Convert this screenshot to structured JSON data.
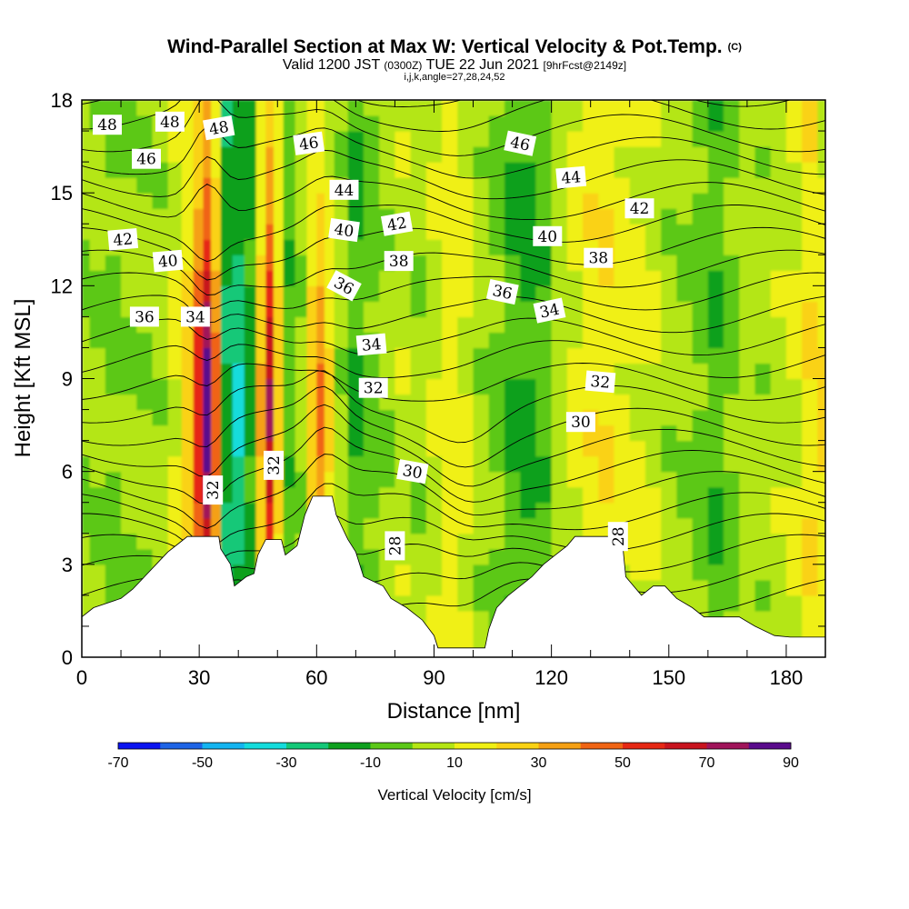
{
  "chart_data": {
    "type": "heatmap",
    "title": "Wind-Parallel Section at Max W: Vertical Velocity & Pot.Temp.",
    "copyright_mark": "(C)",
    "subtitle_parts": [
      "Valid 1200 JST",
      "(0300Z)",
      "TUE 22 Jun 2021",
      "[9hrFcst@2149z]"
    ],
    "subsubtitle": "i,j,k,angle=27,28,24,52",
    "xlabel": "Distance [nm]",
    "ylabel": "Height [Kft MSL]",
    "xlim": [
      0,
      190
    ],
    "ylim": [
      0,
      18
    ],
    "x_ticks": [
      0,
      30,
      60,
      90,
      120,
      150,
      180
    ],
    "y_ticks": [
      0,
      3,
      6,
      9,
      12,
      15,
      18
    ],
    "colorbar": {
      "title": "Vertical Velocity [cm/s]",
      "bounds": [
        -70,
        -60,
        -50,
        -40,
        -30,
        -20,
        -10,
        0,
        10,
        20,
        30,
        40,
        50,
        60,
        70,
        80,
        90
      ],
      "tick_labels": [
        "-70",
        "-50",
        "-30",
        "-10",
        "10",
        "30",
        "50",
        "70",
        "90"
      ],
      "colors": [
        "#0a14f0",
        "#1e64e6",
        "#14b4f0",
        "#14dcdc",
        "#14c878",
        "#0ea01e",
        "#5cc818",
        "#b4e614",
        "#f0f014",
        "#fad214",
        "#f5a014",
        "#f06414",
        "#e62814",
        "#c8141e",
        "#a0145a",
        "#5a0a8c"
      ]
    },
    "vertical_velocity_columns": [
      {
        "x": 0,
        "w": 2
      },
      {
        "x": 4,
        "w": 2
      },
      {
        "x": 8,
        "w": -2
      },
      {
        "x": 12,
        "w": 2
      },
      {
        "x": 16,
        "w": 2
      },
      {
        "x": 20,
        "w": 4
      },
      {
        "x": 24,
        "w": 12
      },
      {
        "x": 27,
        "w": 30
      },
      {
        "x": 30,
        "w": 60
      },
      {
        "x": 32,
        "w": 88
      },
      {
        "x": 34,
        "w": 45
      },
      {
        "x": 37,
        "w": -18
      },
      {
        "x": 40,
        "w": -32
      },
      {
        "x": 43,
        "w": -14
      },
      {
        "x": 46,
        "w": 32
      },
      {
        "x": 48,
        "w": 72
      },
      {
        "x": 50,
        "w": 28
      },
      {
        "x": 53,
        "w": -6
      },
      {
        "x": 56,
        "w": 3
      },
      {
        "x": 59,
        "w": 28
      },
      {
        "x": 61,
        "w": 42
      },
      {
        "x": 63,
        "w": 22
      },
      {
        "x": 66,
        "w": 4
      },
      {
        "x": 70,
        "w": -10
      },
      {
        "x": 74,
        "w": -4
      },
      {
        "x": 78,
        "w": 3
      },
      {
        "x": 82,
        "w": 6
      },
      {
        "x": 86,
        "w": 3
      },
      {
        "x": 90,
        "w": 8
      },
      {
        "x": 94,
        "w": 15
      },
      {
        "x": 98,
        "w": 12
      },
      {
        "x": 102,
        "w": 4
      },
      {
        "x": 106,
        "w": -2
      },
      {
        "x": 110,
        "w": -8
      },
      {
        "x": 114,
        "w": -12
      },
      {
        "x": 118,
        "w": -6
      },
      {
        "x": 122,
        "w": 5
      },
      {
        "x": 126,
        "w": 12
      },
      {
        "x": 130,
        "w": 16
      },
      {
        "x": 134,
        "w": 18
      },
      {
        "x": 138,
        "w": 14
      },
      {
        "x": 142,
        "w": 12
      },
      {
        "x": 146,
        "w": 8
      },
      {
        "x": 150,
        "w": 4
      },
      {
        "x": 154,
        "w": 2
      },
      {
        "x": 158,
        "w": -4
      },
      {
        "x": 162,
        "w": -8
      },
      {
        "x": 166,
        "w": -2
      },
      {
        "x": 170,
        "w": 5
      },
      {
        "x": 174,
        "w": 4
      },
      {
        "x": 178,
        "w": 6
      },
      {
        "x": 182,
        "w": 10
      },
      {
        "x": 186,
        "w": 18
      },
      {
        "x": 190,
        "w": 22
      }
    ],
    "terrain": [
      [
        0,
        1.3
      ],
      [
        3,
        1.6
      ],
      [
        10,
        1.9
      ],
      [
        13,
        2.2
      ],
      [
        16,
        2.6
      ],
      [
        19,
        3.0
      ],
      [
        22,
        3.4
      ],
      [
        25,
        3.7
      ],
      [
        27,
        3.9
      ],
      [
        35,
        3.9
      ],
      [
        35.5,
        3.5
      ],
      [
        38,
        3.0
      ],
      [
        39,
        2.3
      ],
      [
        42,
        2.6
      ],
      [
        44,
        2.7
      ],
      [
        45,
        3.3
      ],
      [
        47,
        3.8
      ],
      [
        51,
        3.8
      ],
      [
        52,
        3.3
      ],
      [
        55,
        3.6
      ],
      [
        57,
        4.6
      ],
      [
        59,
        5.2
      ],
      [
        64,
        5.2
      ],
      [
        65,
        4.6
      ],
      [
        68,
        3.8
      ],
      [
        70,
        3.4
      ],
      [
        72,
        2.6
      ],
      [
        77,
        2.3
      ],
      [
        79,
        1.9
      ],
      [
        83,
        1.6
      ],
      [
        87,
        1.2
      ],
      [
        90,
        0.7
      ],
      [
        91,
        0.3
      ],
      [
        103,
        0.3
      ],
      [
        104,
        0.9
      ],
      [
        106,
        1.6
      ],
      [
        109,
        2.0
      ],
      [
        112,
        2.3
      ],
      [
        115,
        2.6
      ],
      [
        118,
        3.0
      ],
      [
        121,
        3.3
      ],
      [
        124,
        3.6
      ],
      [
        126,
        3.9
      ],
      [
        138,
        3.9
      ],
      [
        139,
        2.6
      ],
      [
        143,
        2.0
      ],
      [
        146,
        2.3
      ],
      [
        149,
        2.3
      ],
      [
        152,
        1.9
      ],
      [
        156,
        1.6
      ],
      [
        159,
        1.3
      ],
      [
        168,
        1.3
      ],
      [
        172,
        1.0
      ],
      [
        177,
        0.7
      ],
      [
        181,
        0.65
      ],
      [
        190,
        0.65
      ]
    ],
    "theta_levels": [
      26,
      27,
      28,
      29,
      30,
      31,
      32,
      33,
      34,
      35,
      36,
      37,
      38,
      39,
      40,
      41,
      42,
      43,
      44,
      45,
      46,
      47,
      48,
      49
    ],
    "theta_labels": [
      {
        "text": "48",
        "x": 6.5,
        "y": 17.2,
        "rot": 0
      },
      {
        "text": "48",
        "x": 22.5,
        "y": 17.3,
        "rot": 0
      },
      {
        "text": "48",
        "x": 35,
        "y": 17.1,
        "rot": -10
      },
      {
        "text": "46",
        "x": 16.5,
        "y": 16.1,
        "rot": 0
      },
      {
        "text": "46",
        "x": 58,
        "y": 16.6,
        "rot": -8
      },
      {
        "text": "46",
        "x": 112,
        "y": 16.6,
        "rot": 12
      },
      {
        "text": "44",
        "x": 67,
        "y": 15.1,
        "rot": 0
      },
      {
        "text": "44",
        "x": 125,
        "y": 15.5,
        "rot": -5
      },
      {
        "text": "42",
        "x": 10.5,
        "y": 13.5,
        "rot": -5
      },
      {
        "text": "42",
        "x": 80.5,
        "y": 14.0,
        "rot": -10
      },
      {
        "text": "42",
        "x": 142.5,
        "y": 14.5,
        "rot": 0
      },
      {
        "text": "40",
        "x": 22,
        "y": 12.8,
        "rot": -5
      },
      {
        "text": "40",
        "x": 67,
        "y": 13.8,
        "rot": 8
      },
      {
        "text": "40",
        "x": 119,
        "y": 13.6,
        "rot": 0
      },
      {
        "text": "38",
        "x": 81,
        "y": 12.8,
        "rot": 0
      },
      {
        "text": "38",
        "x": 132,
        "y": 12.9,
        "rot": 0
      },
      {
        "text": "36",
        "x": 16,
        "y": 11.0,
        "rot": 0
      },
      {
        "text": "36",
        "x": 67,
        "y": 12.0,
        "rot": 28
      },
      {
        "text": "36",
        "x": 107.5,
        "y": 11.8,
        "rot": 12
      },
      {
        "text": "34",
        "x": 29,
        "y": 11.0,
        "rot": 0
      },
      {
        "text": "34",
        "x": 74,
        "y": 10.1,
        "rot": -5
      },
      {
        "text": "34",
        "x": 119.5,
        "y": 11.2,
        "rot": -12
      },
      {
        "text": "32",
        "x": 74.5,
        "y": 8.7,
        "rot": 0
      },
      {
        "text": "32",
        "x": 132.5,
        "y": 8.9,
        "rot": 5
      },
      {
        "text": "32",
        "x": 33.5,
        "y": 5.4,
        "rot": -90
      },
      {
        "text": "32",
        "x": 49,
        "y": 6.2,
        "rot": -90
      },
      {
        "text": "30",
        "x": 84.5,
        "y": 6.0,
        "rot": 10
      },
      {
        "text": "30",
        "x": 127.5,
        "y": 7.6,
        "rot": 0
      },
      {
        "text": "28",
        "x": 80,
        "y": 3.6,
        "rot": -90
      },
      {
        "text": "28",
        "x": 137,
        "y": 3.9,
        "rot": -90
      }
    ]
  }
}
